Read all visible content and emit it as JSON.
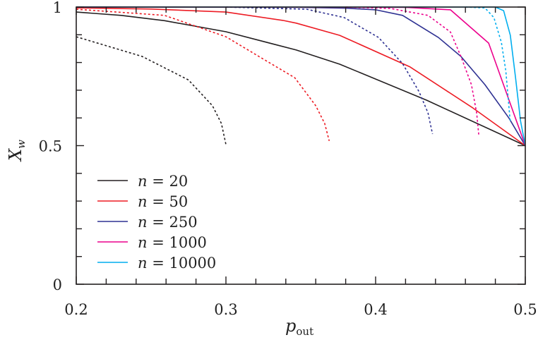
{
  "chart_data": {
    "type": "line",
    "title": "",
    "xlabel": "p_out",
    "xlabel_main": "p",
    "xlabel_sub": "out",
    "ylabel": "X_w",
    "ylabel_main": "X",
    "ylabel_sub": "w",
    "xlim": [
      0.2,
      0.5
    ],
    "ylim": [
      0,
      1
    ],
    "x_ticks": [
      0.2,
      0.3,
      0.4,
      0.5
    ],
    "x_tick_labels": [
      "0.2",
      "0.3",
      "0.4",
      "0.5"
    ],
    "x_minor_step": 0.02,
    "y_ticks": [
      0,
      0.5,
      1
    ],
    "y_tick_labels": [
      "0",
      "0.5",
      "1"
    ],
    "y_minor_step": 0.1,
    "grid": false,
    "legend_position": "bottom-left",
    "series": [
      {
        "name": "n = 20",
        "legend_n": "20",
        "color": "#231f20",
        "style": "solid",
        "x": [
          0.2,
          0.23,
          0.259,
          0.3,
          0.347,
          0.376,
          0.434,
          0.5
        ],
        "y": [
          0.982,
          0.97,
          0.951,
          0.911,
          0.845,
          0.794,
          0.664,
          0.5
        ]
      },
      {
        "name": "n = 50",
        "legend_n": "50",
        "color": "#ed1c24",
        "style": "solid",
        "x": [
          0.2,
          0.25,
          0.3,
          0.338,
          0.347,
          0.376,
          0.423,
          0.465,
          0.5
        ],
        "y": [
          0.997,
          0.993,
          0.982,
          0.952,
          0.942,
          0.898,
          0.784,
          0.636,
          0.5
        ]
      },
      {
        "name": "n = 250",
        "legend_n": "250",
        "color": "#2e3192",
        "style": "solid",
        "x": [
          0.2,
          0.35,
          0.38,
          0.4,
          0.418,
          0.442,
          0.457,
          0.473,
          0.489,
          0.5
        ],
        "y": [
          1.0,
          0.999,
          0.996,
          0.99,
          0.97,
          0.89,
          0.822,
          0.72,
          0.6,
          0.5
        ]
      },
      {
        "name": "n = 1000",
        "legend_n": "1000",
        "color": "#ec008c",
        "style": "solid",
        "x": [
          0.2,
          0.42,
          0.45,
          0.4755,
          0.5
        ],
        "y": [
          1.0,
          0.999,
          0.99,
          0.87,
          0.5
        ]
      },
      {
        "name": "n = 10000",
        "legend_n": "10000",
        "color": "#00aeef",
        "style": "solid",
        "x": [
          0.2,
          0.48,
          0.4855,
          0.49,
          0.4935,
          0.4968,
          0.5
        ],
        "y": [
          1.0,
          1.0,
          0.987,
          0.898,
          0.745,
          0.59,
          0.5
        ]
      },
      {
        "color": "#231f20",
        "style": "dotted",
        "x": [
          0.2,
          0.244,
          0.275,
          0.291,
          0.297,
          0.3
        ],
        "y": [
          0.893,
          0.822,
          0.737,
          0.644,
          0.58,
          0.504
        ]
      },
      {
        "color": "#ed1c24",
        "style": "dotted",
        "x": [
          0.2,
          0.259,
          0.275,
          0.3,
          0.322,
          0.346,
          0.36,
          0.366,
          0.369
        ],
        "y": [
          0.992,
          0.97,
          0.94,
          0.893,
          0.822,
          0.745,
          0.644,
          0.58,
          0.517
        ]
      },
      {
        "color": "#2e3192",
        "style": "dotted",
        "x": [
          0.3,
          0.354,
          0.379,
          0.402,
          0.418,
          0.429,
          0.435,
          0.438
        ],
        "y": [
          1.0,
          0.992,
          0.962,
          0.89,
          0.796,
          0.695,
          0.618,
          0.542
        ]
      },
      {
        "color": "#ec008c",
        "style": "dotted",
        "x": [
          0.38,
          0.41,
          0.435,
          0.45,
          0.457,
          0.464,
          0.4675,
          0.469
        ],
        "y": [
          1.0,
          0.995,
          0.97,
          0.91,
          0.822,
          0.72,
          0.618,
          0.534
        ]
      },
      {
        "color": "#00aeef",
        "style": "dotted",
        "x": [
          0.46,
          0.473,
          0.479,
          0.484,
          0.487,
          0.4896,
          0.49
        ],
        "y": [
          1.0,
          0.997,
          0.962,
          0.873,
          0.77,
          0.605,
          0.59
        ]
      }
    ]
  }
}
